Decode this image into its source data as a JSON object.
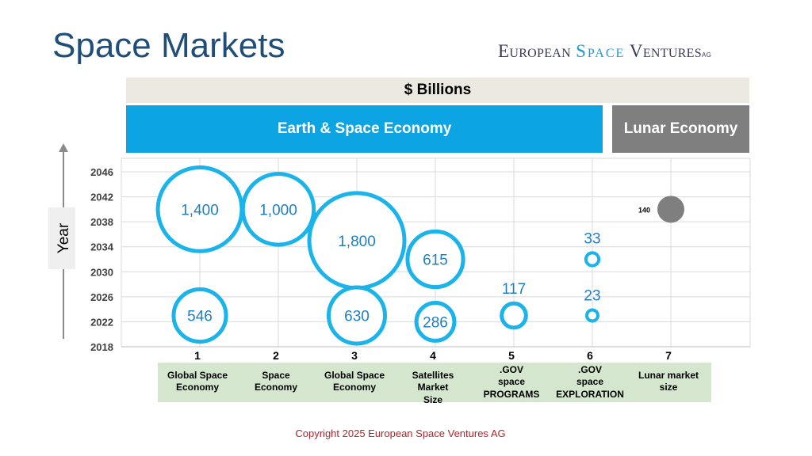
{
  "title": "Space Markets",
  "logo": {
    "part1": "European ",
    "part2": "Space",
    "part3": " Ventures",
    "suffix": "AG"
  },
  "units_label": "$ Billions",
  "bands": {
    "earth": "Earth & Space Economy",
    "lunar": "Lunar Economy"
  },
  "copyright": "Copyright 2025 European Space Ventures AG",
  "colors": {
    "bubble_outline": "#1ab3ea",
    "bubble_text": "#1f7fc2",
    "lunar_fill": "#7f7f7f",
    "earth_band": "#0da4e4",
    "lunar_band": "#7f7f7f",
    "category_bg": "#d5e6cf"
  },
  "chart_data": {
    "type": "scatter",
    "subtype": "bubble",
    "title": "",
    "xlabel": "",
    "ylabel": "Year",
    "xlim": [
      0.5,
      7.5
    ],
    "ylim": [
      2018,
      2048
    ],
    "yticks": [
      2018,
      2022,
      2026,
      2030,
      2034,
      2038,
      2042,
      2046
    ],
    "grid": true,
    "categories": [
      {
        "x": 1,
        "name": "Global Space Economy"
      },
      {
        "x": 2,
        "name": "Space Economy"
      },
      {
        "x": 3,
        "name": "Global Space Economy"
      },
      {
        "x": 4,
        "name": "Satellites Market Size"
      },
      {
        "x": 5,
        "name": ".GOV space PROGRAMS"
      },
      {
        "x": 6,
        "name": ".GOV space EXPLORATION"
      },
      {
        "x": 7,
        "name": "Lunar market size"
      }
    ],
    "points": [
      {
        "x": 1,
        "y": 2040,
        "value": 1400,
        "label": "1,400",
        "label_pos": "center",
        "style": "ring"
      },
      {
        "x": 2,
        "y": 2040,
        "value": 1000,
        "label": "1,000",
        "label_pos": "center",
        "style": "ring"
      },
      {
        "x": 3,
        "y": 2035,
        "value": 1800,
        "label": "1,800",
        "label_pos": "center",
        "style": "ring"
      },
      {
        "x": 4,
        "y": 2032,
        "value": 615,
        "label": "615",
        "label_pos": "center",
        "style": "ring"
      },
      {
        "x": 1,
        "y": 2023,
        "value": 546,
        "label": "546",
        "label_pos": "center",
        "style": "ring"
      },
      {
        "x": 3,
        "y": 2023,
        "value": 630,
        "label": "630",
        "label_pos": "center",
        "style": "ring"
      },
      {
        "x": 4,
        "y": 2022,
        "value": 286,
        "label": "286",
        "label_pos": "center",
        "style": "ring"
      },
      {
        "x": 5,
        "y": 2023,
        "value": 117,
        "label": "117",
        "label_pos": "above",
        "style": "ring"
      },
      {
        "x": 6,
        "y": 2032,
        "value": 33,
        "label": "33",
        "label_pos": "above",
        "style": "ring"
      },
      {
        "x": 6,
        "y": 2023,
        "value": 23,
        "label": "23",
        "label_pos": "above",
        "style": "ring"
      },
      {
        "x": 7,
        "y": 2040,
        "value": 140,
        "label": "140",
        "label_pos": "left",
        "style": "filled"
      }
    ]
  }
}
